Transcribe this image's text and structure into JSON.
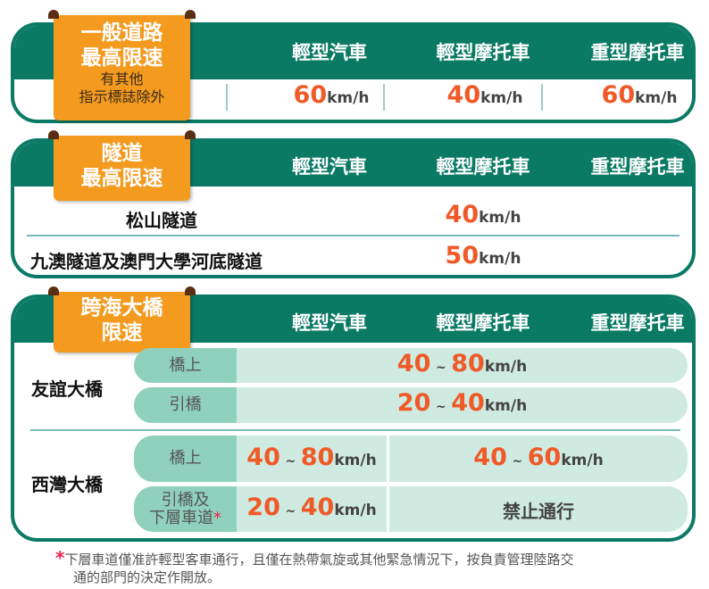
{
  "columns": [
    "輕型汽車",
    "輕型摩托車",
    "重型摩托車"
  ],
  "unit": "km/h",
  "general": {
    "tab_title_1": "一般道路",
    "tab_title_2": "最高限速",
    "tab_note_1": "有其他",
    "tab_note_2": "指示標誌除外",
    "speeds": [
      "60",
      "40",
      "60"
    ]
  },
  "tunnel": {
    "tab_title_1": "隧道",
    "tab_title_2": "最高限速",
    "rows": [
      {
        "name": "松山隧道",
        "speed": "40"
      },
      {
        "name": "九澳隧道及澳門大學河底隧道",
        "speed": "50"
      }
    ]
  },
  "bridge": {
    "tab_title_1": "跨海大橋",
    "tab_title_2": "限速",
    "friendship": {
      "name": "友誼大橋",
      "rows": [
        {
          "label": "橋上",
          "min": "40",
          "max": "80"
        },
        {
          "label": "引橋",
          "min": "20",
          "max": "40"
        }
      ]
    },
    "sai_van": {
      "name": "西灣大橋",
      "row1": {
        "label": "橋上",
        "car_min": "40",
        "car_max": "80",
        "moto_min": "40",
        "moto_max": "60"
      },
      "row2": {
        "label_1": "引橋及",
        "label_2": "下層車道",
        "asterisk": "*",
        "car_min": "20",
        "car_max": "40",
        "moto": "禁止通行"
      }
    }
  },
  "tilde": "~",
  "footnote": {
    "asterisk": "*",
    "text_1": "下層車道僅准許輕型客車通行，且僅在熱帶氣旋或其他緊急情況下，按負責管理陸路交",
    "text_2": "通的部門的決定作開放。"
  },
  "colors": {
    "green": "#0b7a65",
    "orange": "#f39a1f",
    "speed_red": "#ef5a28"
  }
}
